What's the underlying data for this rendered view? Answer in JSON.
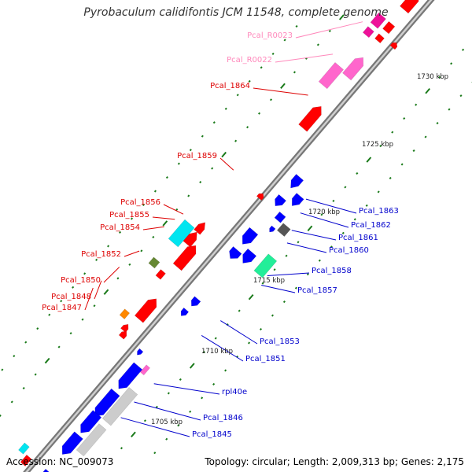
{
  "title": "Pyrobaculum calidifontis JCM 11548, complete genome",
  "accession": "Accession: NC_009073",
  "topology": "Topology: circular; Length: 2,009,313 bp; Genes: 2,175",
  "colors": {
    "backbone": "#8a8a8a",
    "protein_fwd": "#ff0000",
    "protein_rev": "#0000ff",
    "rna": "#ff66cc",
    "rna_dark": "#ee1199",
    "pseudo": "#cccccc",
    "cyan": "#00e5f0",
    "mint": "#22ee99",
    "olive": "#668833",
    "dark_gray": "#555555",
    "orange": "#ff8800",
    "ticks": "#1a7a1a",
    "label_red": "#dd0000",
    "label_blue": "#0000cc",
    "label_pink": "#ff88bb"
  },
  "scale_labels": [
    {
      "text": "1705 kbp"
    },
    {
      "text": "1710 kbp"
    },
    {
      "text": "1715 kbp"
    },
    {
      "text": "1720 kbp"
    },
    {
      "text": "1725 kbp"
    },
    {
      "text": "1730 kbp"
    }
  ],
  "gene_labels": [
    {
      "text": "Pcal_R0023",
      "color": "label_pink"
    },
    {
      "text": "Pcal_R0022",
      "color": "label_pink"
    },
    {
      "text": "Pcal_1864",
      "color": "label_red"
    },
    {
      "text": "Pcal_1859",
      "color": "label_red"
    },
    {
      "text": "Pcal_1856",
      "color": "label_red"
    },
    {
      "text": "Pcal_1855",
      "color": "label_red"
    },
    {
      "text": "Pcal_1854",
      "color": "label_red"
    },
    {
      "text": "Pcal_1852",
      "color": "label_red"
    },
    {
      "text": "Pcal_1850",
      "color": "label_red"
    },
    {
      "text": "Pcal_1848",
      "color": "label_red"
    },
    {
      "text": "Pcal_1847",
      "color": "label_red"
    },
    {
      "text": "Pcal_1863",
      "color": "label_blue"
    },
    {
      "text": "Pcal_1862",
      "color": "label_blue"
    },
    {
      "text": "Pcal_1861",
      "color": "label_blue"
    },
    {
      "text": "Pcal_1860",
      "color": "label_blue"
    },
    {
      "text": "Pcal_1858",
      "color": "label_blue"
    },
    {
      "text": "Pcal_1857",
      "color": "label_blue"
    },
    {
      "text": "Pcal_1853",
      "color": "label_blue"
    },
    {
      "text": "Pcal_1851",
      "color": "label_blue"
    },
    {
      "text": "rpl40e",
      "color": "label_blue"
    },
    {
      "text": "Pcal_1846",
      "color": "label_blue"
    },
    {
      "text": "Pcal_1845",
      "color": "label_blue"
    }
  ]
}
